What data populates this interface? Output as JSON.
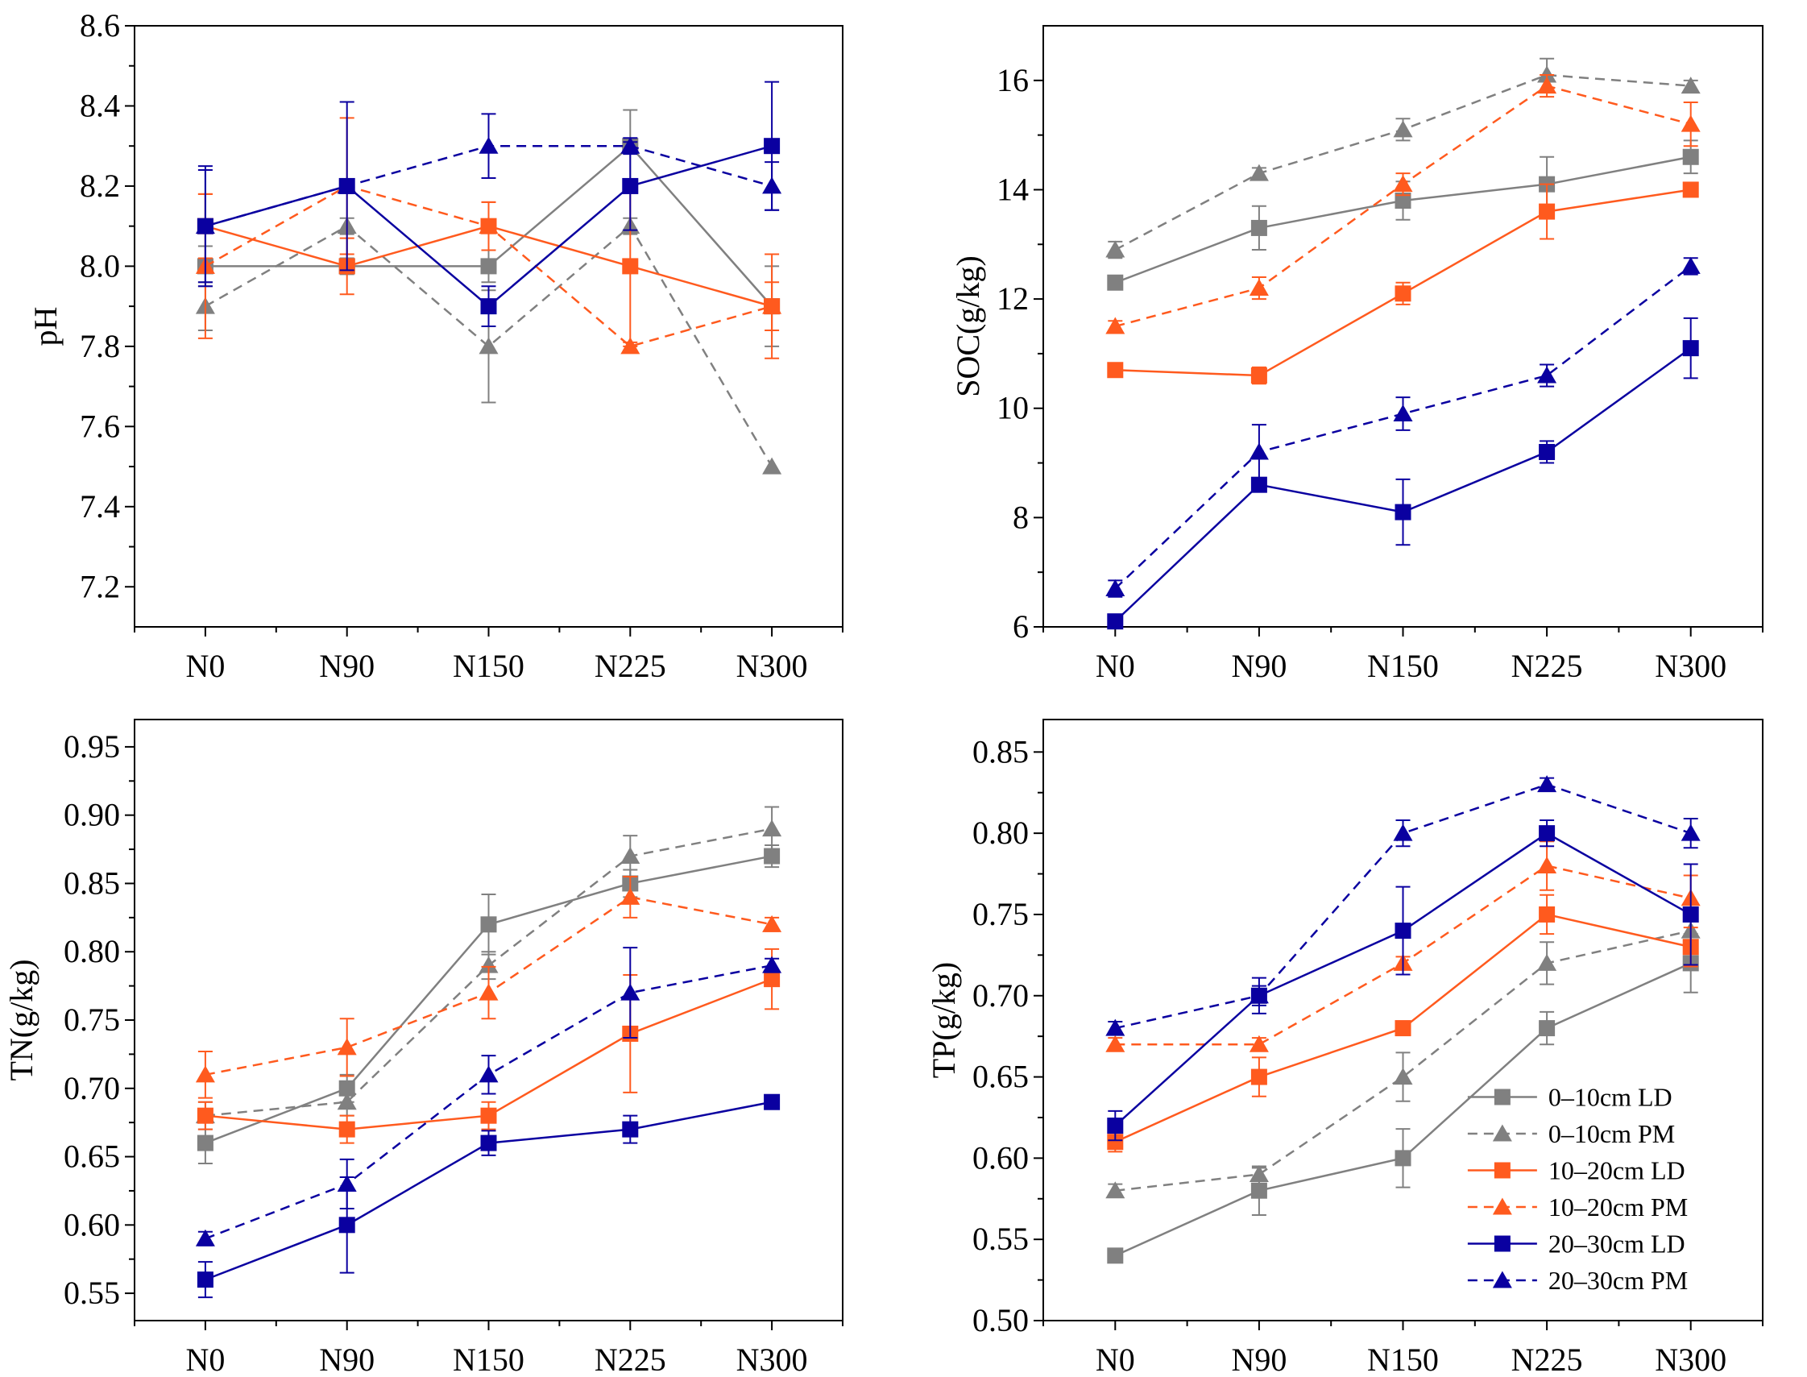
{
  "chart_data": [
    {
      "type": "line",
      "ylabel": "pH",
      "categories": [
        "N0",
        "N90",
        "N150",
        "N225",
        "N300"
      ],
      "ylim": [
        7.1,
        8.6
      ],
      "yticks": [
        7.2,
        7.4,
        7.6,
        7.8,
        8.0,
        8.2,
        8.4,
        8.6
      ],
      "ytick_labels": [
        "7.2",
        "7.4",
        "7.6",
        "7.8",
        "8.0",
        "8.2",
        "8.4",
        "8.6"
      ],
      "series": [
        {
          "name": "0–10cm LD",
          "color": "#808080",
          "dash": false,
          "marker": "square",
          "values": [
            8.0,
            8.0,
            8.0,
            8.3,
            7.9
          ],
          "errors": [
            0.05,
            0.02,
            0.04,
            0.09,
            0.1
          ]
        },
        {
          "name": "0–10cm PM",
          "color": "#808080",
          "dash": true,
          "marker": "triangle",
          "values": [
            7.9,
            8.1,
            7.8,
            8.1,
            7.5
          ],
          "errors": [
            0.06,
            0.02,
            0.14,
            0.02,
            0.0
          ]
        },
        {
          "name": "10–20cm LD",
          "color": "#ff5a1e",
          "dash": false,
          "marker": "square",
          "values": [
            8.1,
            8.0,
            8.1,
            8.0,
            7.9
          ],
          "errors": [
            0.08,
            0.07,
            0.06,
            0.2,
            0.06
          ]
        },
        {
          "name": "10–20cm PM",
          "color": "#ff5a1e",
          "dash": true,
          "marker": "triangle",
          "values": [
            8.0,
            8.2,
            8.1,
            7.8,
            7.9
          ],
          "errors": [
            0.18,
            0.17,
            0.06,
            0.01,
            0.13
          ]
        },
        {
          "name": "20–30cm LD",
          "color": "#0a00a0",
          "dash": false,
          "marker": "square",
          "values": [
            8.1,
            8.2,
            7.9,
            8.2,
            8.3
          ],
          "errors": [
            0.15,
            0.21,
            0.05,
            0.11,
            0.16
          ]
        },
        {
          "name": "20–30cm PM",
          "color": "#0a00a0",
          "dash": true,
          "marker": "triangle",
          "values": [
            8.1,
            8.2,
            8.3,
            8.3,
            8.2
          ],
          "errors": [
            0.14,
            0.01,
            0.08,
            0.02,
            0.06
          ]
        }
      ]
    },
    {
      "type": "line",
      "ylabel": "SOC(g/kg)",
      "categories": [
        "N0",
        "N90",
        "N150",
        "N225",
        "N300"
      ],
      "ylim": [
        6,
        17
      ],
      "yticks": [
        6,
        8,
        10,
        12,
        14,
        16
      ],
      "ytick_labels": [
        "6",
        "8",
        "10",
        "12",
        "14",
        "16"
      ],
      "series": [
        {
          "name": "0–10cm LD",
          "color": "#808080",
          "dash": false,
          "marker": "square",
          "values": [
            12.3,
            13.3,
            13.8,
            14.1,
            14.6
          ],
          "errors": [
            0.1,
            0.4,
            0.35,
            0.5,
            0.3
          ]
        },
        {
          "name": "0–10cm PM",
          "color": "#808080",
          "dash": true,
          "marker": "triangle",
          "values": [
            12.9,
            14.3,
            15.1,
            16.1,
            15.9
          ],
          "errors": [
            0.15,
            0.1,
            0.2,
            0.3,
            0.1
          ]
        },
        {
          "name": "10–20cm LD",
          "color": "#ff5a1e",
          "dash": false,
          "marker": "square",
          "values": [
            10.7,
            10.6,
            12.1,
            13.6,
            14.0
          ],
          "errors": [
            0.1,
            0.15,
            0.2,
            0.5,
            0.1
          ]
        },
        {
          "name": "10–20cm PM",
          "color": "#ff5a1e",
          "dash": true,
          "marker": "triangle",
          "values": [
            11.5,
            12.2,
            14.1,
            15.9,
            15.2
          ],
          "errors": [
            0.1,
            0.2,
            0.2,
            0.2,
            0.4
          ]
        },
        {
          "name": "20–30cm LD",
          "color": "#0a00a0",
          "dash": false,
          "marker": "square",
          "values": [
            6.1,
            8.6,
            8.1,
            9.2,
            11.1
          ],
          "errors": [
            0.1,
            0.1,
            0.6,
            0.2,
            0.55
          ]
        },
        {
          "name": "20–30cm PM",
          "color": "#0a00a0",
          "dash": true,
          "marker": "triangle",
          "values": [
            6.7,
            9.2,
            9.9,
            10.6,
            12.6
          ],
          "errors": [
            0.15,
            0.5,
            0.3,
            0.2,
            0.15
          ]
        }
      ]
    },
    {
      "type": "line",
      "ylabel": "TN(g/kg)",
      "categories": [
        "N0",
        "N90",
        "N150",
        "N225",
        "N300"
      ],
      "ylim": [
        0.53,
        0.97
      ],
      "yticks": [
        0.55,
        0.6,
        0.65,
        0.7,
        0.75,
        0.8,
        0.85,
        0.9,
        0.95
      ],
      "ytick_labels": [
        "0.55",
        "0.60",
        "0.65",
        "0.70",
        "0.75",
        "0.80",
        "0.85",
        "0.90",
        "0.95"
      ],
      "series": [
        {
          "name": "0–10cm LD",
          "color": "#808080",
          "dash": false,
          "marker": "square",
          "values": [
            0.66,
            0.7,
            0.82,
            0.85,
            0.87
          ],
          "errors": [
            0.015,
            0.01,
            0.022,
            0.01,
            0.008
          ]
        },
        {
          "name": "0–10cm PM",
          "color": "#808080",
          "dash": true,
          "marker": "triangle",
          "values": [
            0.68,
            0.69,
            0.79,
            0.87,
            0.89
          ],
          "errors": [
            0.01,
            0.01,
            0.01,
            0.015,
            0.016
          ]
        },
        {
          "name": "10–20cm LD",
          "color": "#ff5a1e",
          "dash": false,
          "marker": "square",
          "values": [
            0.68,
            0.67,
            0.68,
            0.74,
            0.78
          ],
          "errors": [
            0.01,
            0.01,
            0.01,
            0.043,
            0.022
          ]
        },
        {
          "name": "10–20cm PM",
          "color": "#ff5a1e",
          "dash": true,
          "marker": "triangle",
          "values": [
            0.71,
            0.73,
            0.77,
            0.84,
            0.82
          ],
          "errors": [
            0.017,
            0.021,
            0.019,
            0.015,
            0.005
          ]
        },
        {
          "name": "20–30cm LD",
          "color": "#0a00a0",
          "dash": false,
          "marker": "square",
          "values": [
            0.56,
            0.6,
            0.66,
            0.67,
            0.69
          ],
          "errors": [
            0.013,
            0.035,
            0.009,
            0.01,
            0.004
          ]
        },
        {
          "name": "20–30cm PM",
          "color": "#0a00a0",
          "dash": true,
          "marker": "triangle",
          "values": [
            0.59,
            0.63,
            0.71,
            0.77,
            0.79
          ],
          "errors": [
            0.005,
            0.018,
            0.014,
            0.033,
            0.005
          ]
        }
      ]
    },
    {
      "type": "line",
      "ylabel": "TP(g/kg)",
      "categories": [
        "N0",
        "N90",
        "N150",
        "N225",
        "N300"
      ],
      "ylim": [
        0.5,
        0.87
      ],
      "yticks": [
        0.5,
        0.55,
        0.6,
        0.65,
        0.7,
        0.75,
        0.8,
        0.85
      ],
      "ytick_labels": [
        "0.50",
        "0.55",
        "0.60",
        "0.65",
        "0.70",
        "0.75",
        "0.80",
        "0.85"
      ],
      "legend": "bottom-right",
      "series": [
        {
          "name": "0–10cm LD",
          "color": "#808080",
          "dash": false,
          "marker": "square",
          "values": [
            0.54,
            0.58,
            0.6,
            0.68,
            0.72
          ],
          "errors": [
            0.004,
            0.015,
            0.018,
            0.01,
            0.018
          ]
        },
        {
          "name": "0–10cm PM",
          "color": "#808080",
          "dash": true,
          "marker": "triangle",
          "values": [
            0.58,
            0.59,
            0.65,
            0.72,
            0.74
          ],
          "errors": [
            0.004,
            0.004,
            0.015,
            0.013,
            0.01
          ]
        },
        {
          "name": "10–20cm LD",
          "color": "#ff5a1e",
          "dash": false,
          "marker": "square",
          "values": [
            0.61,
            0.65,
            0.68,
            0.75,
            0.73
          ],
          "errors": [
            0.006,
            0.012,
            0.004,
            0.012,
            0.012
          ]
        },
        {
          "name": "10–20cm PM",
          "color": "#ff5a1e",
          "dash": true,
          "marker": "triangle",
          "values": [
            0.67,
            0.67,
            0.72,
            0.78,
            0.76
          ],
          "errors": [
            0.004,
            0.004,
            0.004,
            0.015,
            0.014
          ]
        },
        {
          "name": "20–30cm LD",
          "color": "#0a00a0",
          "dash": false,
          "marker": "square",
          "values": [
            0.62,
            0.7,
            0.74,
            0.8,
            0.75
          ],
          "errors": [
            0.009,
            0.006,
            0.027,
            0.008,
            0.031
          ]
        },
        {
          "name": "20–30cm PM",
          "color": "#0a00a0",
          "dash": true,
          "marker": "triangle",
          "values": [
            0.68,
            0.7,
            0.8,
            0.83,
            0.8
          ],
          "errors": [
            0.004,
            0.011,
            0.008,
            0.004,
            0.009
          ]
        }
      ]
    }
  ]
}
